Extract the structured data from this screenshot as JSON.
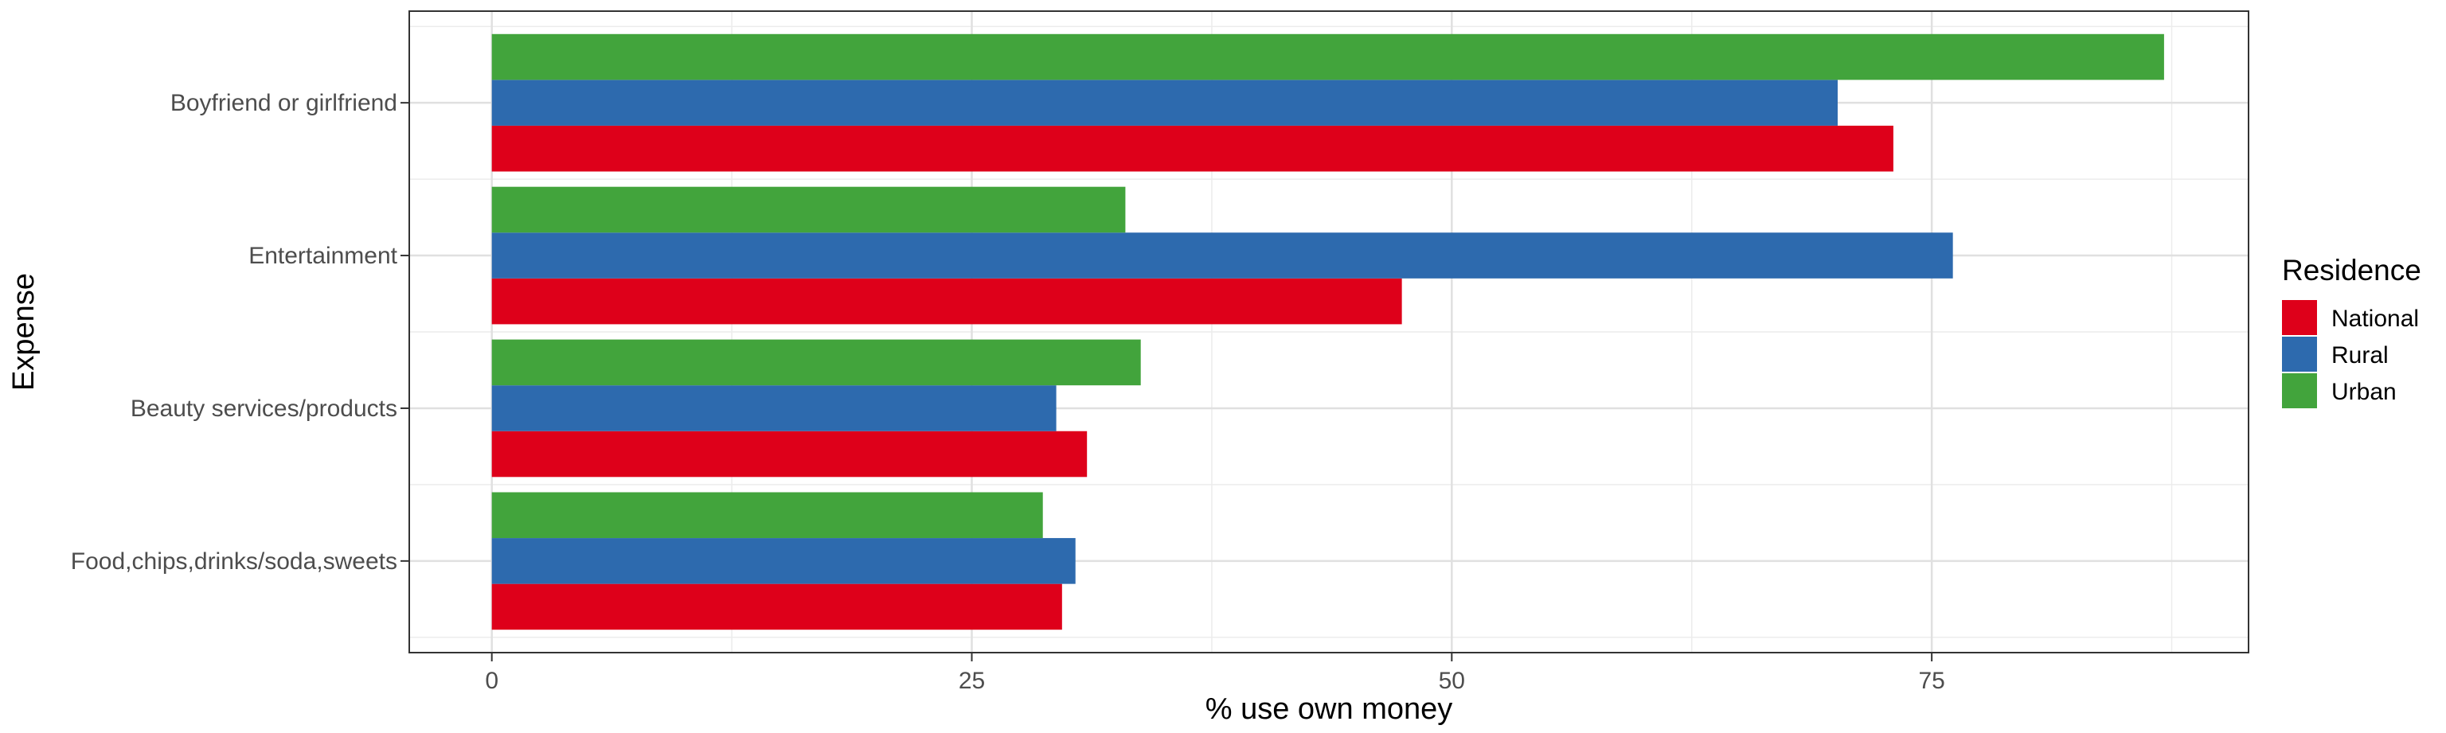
{
  "chart_data": {
    "type": "bar",
    "orientation": "horizontal",
    "xlabel": "% use own money",
    "ylabel": "Expense",
    "xlim": [
      -4.3,
      91.5
    ],
    "x_ticks": [
      0,
      25,
      50,
      75
    ],
    "categories": [
      "Food,chips,drinks/soda,sweets",
      "Beauty services/products",
      "Entertainment",
      "Boyfriend or girlfriend"
    ],
    "series": [
      {
        "name": "National",
        "color": "#DE001A",
        "values": [
          29.7,
          31.0,
          47.4,
          73.0
        ]
      },
      {
        "name": "Rural",
        "color": "#2D6AAE",
        "values": [
          30.4,
          29.4,
          76.1,
          70.1
        ]
      },
      {
        "name": "Urban",
        "color": "#42A43C",
        "values": [
          28.7,
          33.8,
          33.0,
          87.1
        ]
      }
    ],
    "legend": {
      "title": "Residence",
      "position": "right"
    },
    "grid": true
  }
}
